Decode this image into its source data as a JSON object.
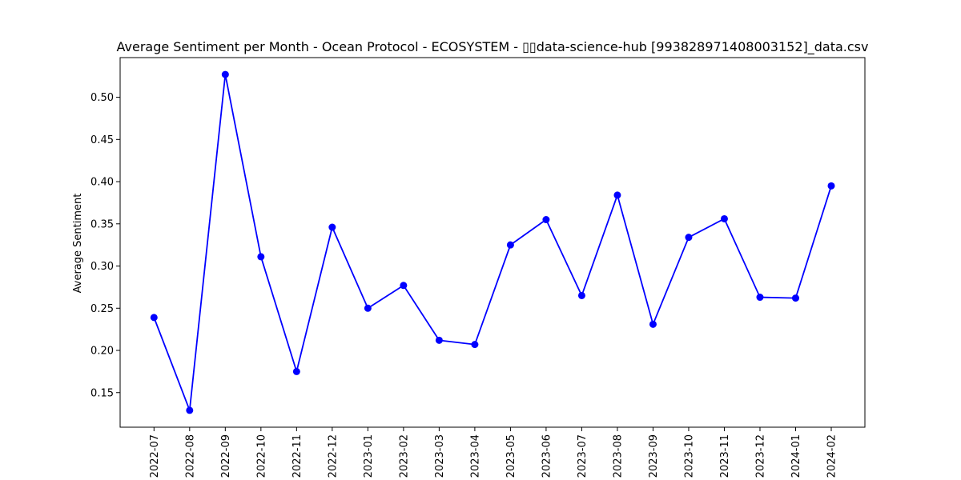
{
  "chart_data": {
    "type": "line",
    "title": "Average Sentiment per Month - Ocean Protocol - ECOSYSTEM - ▯▯data-science-hub [993828971408003152]_data.csv",
    "xlabel": "",
    "ylabel": "Average Sentiment",
    "categories": [
      "2022-07",
      "2022-08",
      "2022-09",
      "2022-10",
      "2022-11",
      "2022-12",
      "2023-01",
      "2023-02",
      "2023-03",
      "2023-04",
      "2023-05",
      "2023-06",
      "2023-07",
      "2023-08",
      "2023-09",
      "2023-10",
      "2023-11",
      "2023-12",
      "2024-01",
      "2024-02"
    ],
    "series": [
      {
        "values": [
          0.239,
          0.129,
          0.527,
          0.311,
          0.175,
          0.346,
          0.25,
          0.277,
          0.212,
          0.207,
          0.325,
          0.355,
          0.265,
          0.384,
          0.231,
          0.334,
          0.356,
          0.263,
          0.262,
          0.395
        ]
      }
    ],
    "yticks": [
      "0.15",
      "0.20",
      "0.25",
      "0.30",
      "0.35",
      "0.40",
      "0.45",
      "0.50"
    ],
    "ylim": [
      0.109,
      0.547
    ],
    "grid": false,
    "colors": {
      "line": "#0000ff",
      "marker": "#0000ff",
      "axes": "#000000"
    }
  }
}
